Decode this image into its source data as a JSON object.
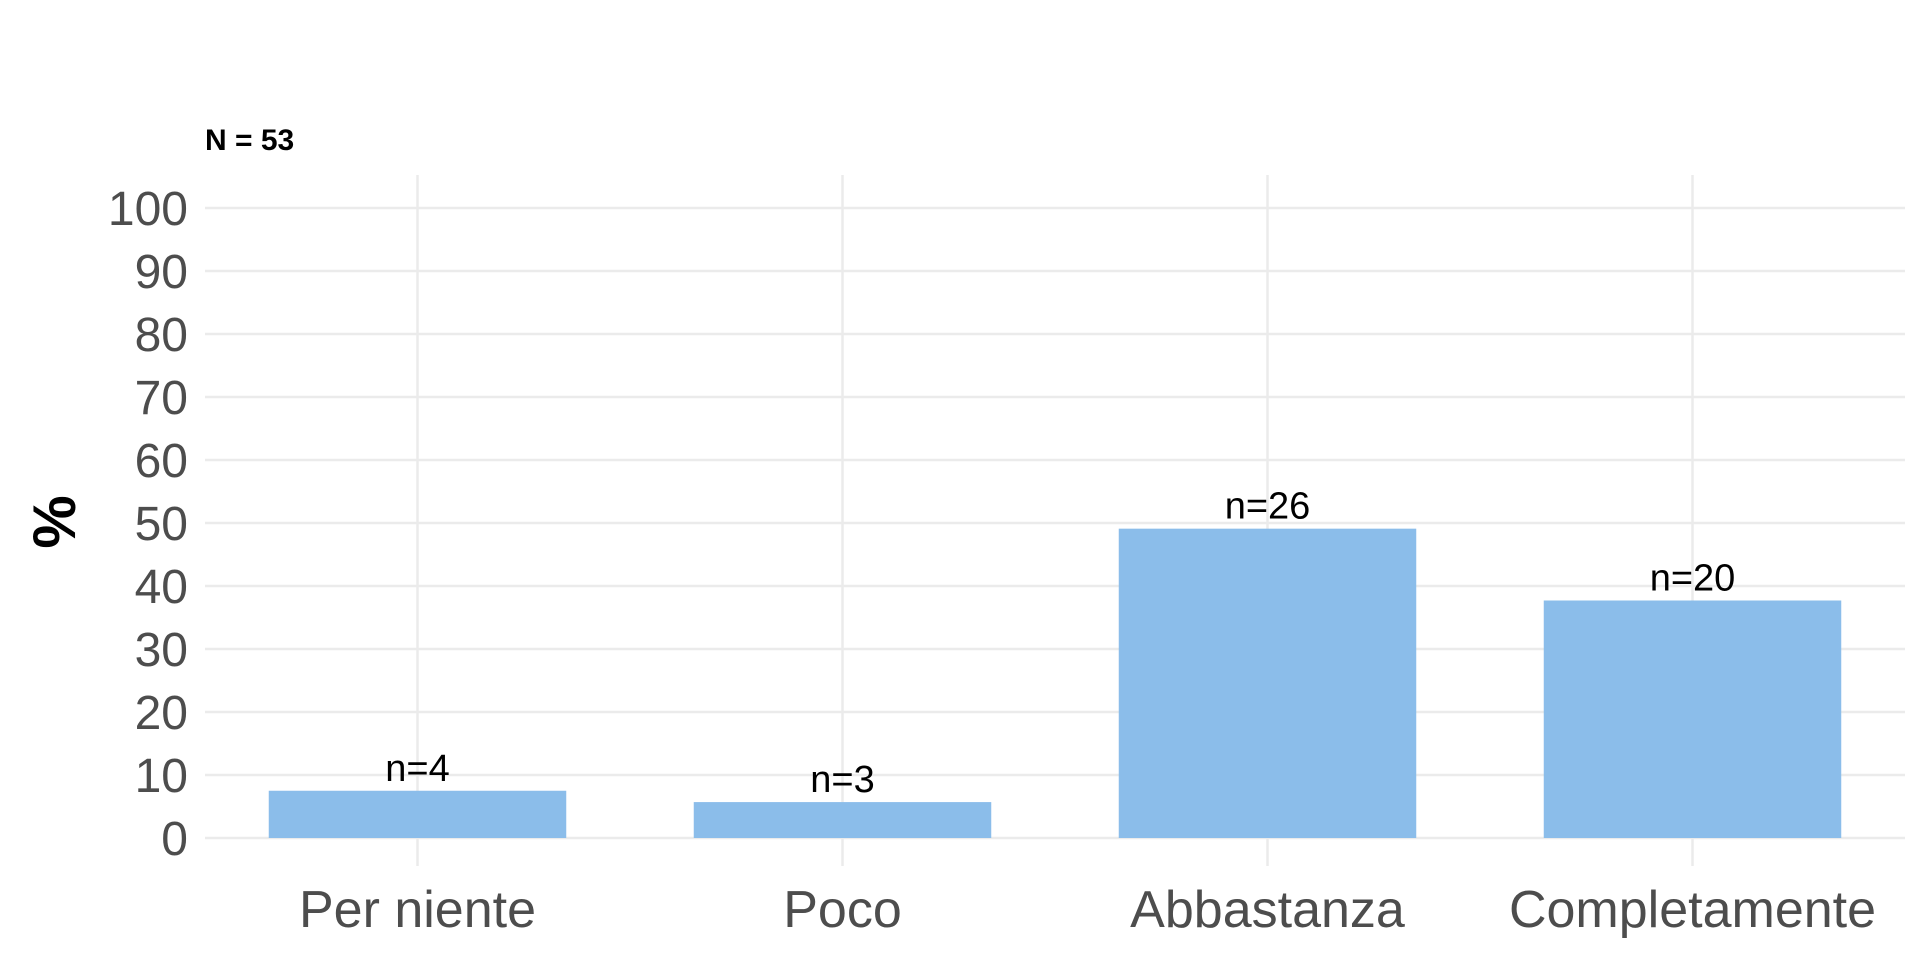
{
  "chart_data": {
    "type": "bar",
    "subtitle": "N = 53",
    "ylabel": "%",
    "xlabel": "",
    "ylim": [
      0,
      100
    ],
    "yticks": [
      0,
      10,
      20,
      30,
      40,
      50,
      60,
      70,
      80,
      90,
      100
    ],
    "categories": [
      "Per niente",
      "Poco",
      "Abbastanza",
      "Completamente"
    ],
    "values": [
      7.5,
      5.7,
      49.1,
      37.7
    ],
    "data_labels": [
      "n=4",
      "n=3",
      "n=26",
      "n=20"
    ],
    "bar_color": "#8bbdea",
    "grid": true,
    "legend": "none"
  }
}
